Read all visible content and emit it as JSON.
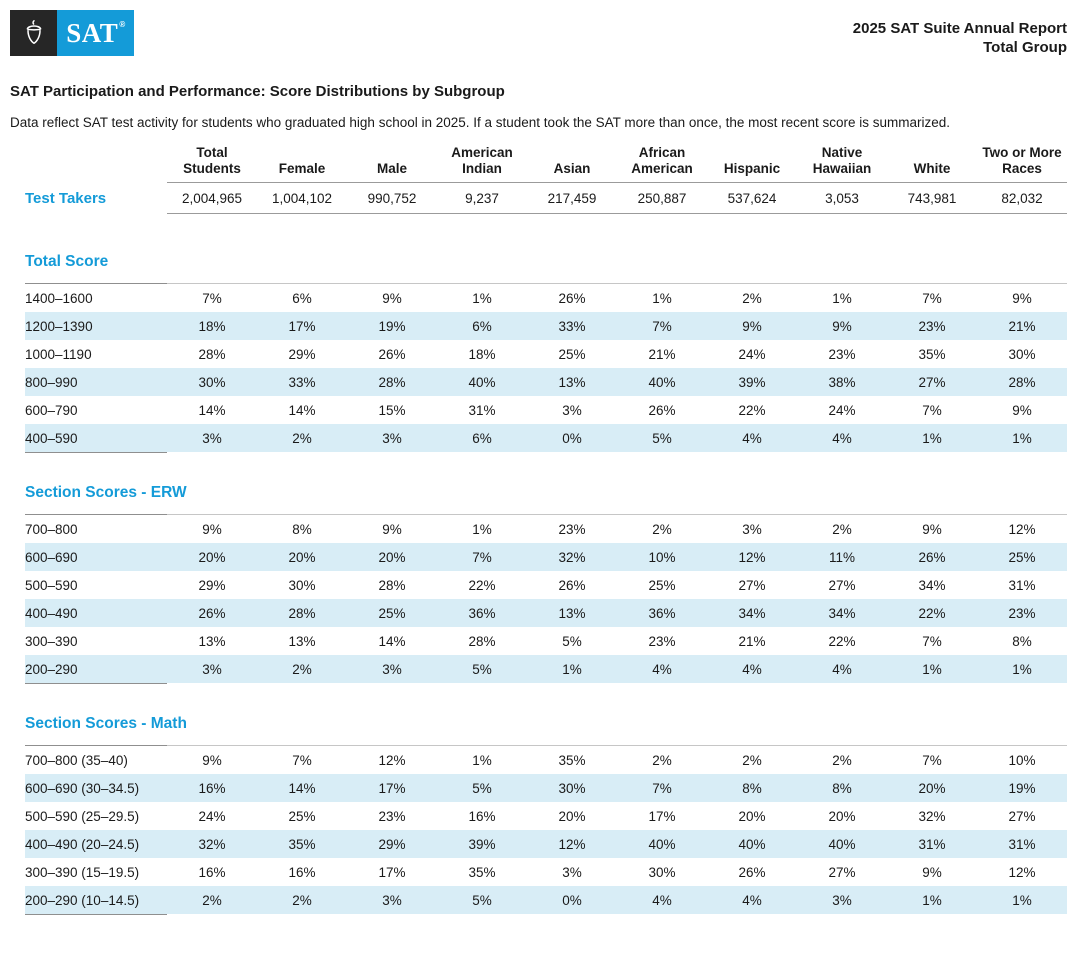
{
  "logo": {
    "text": "SAT",
    "mark": "®"
  },
  "header": {
    "line1": "2025 SAT Suite Annual Report",
    "line2": "Total Group"
  },
  "title": "SAT Participation and Performance: Score Distributions by Subgroup",
  "intro": "Data reflect SAT test activity for students who graduated high school in 2025. If a student took the SAT more than once, the most recent score is summarized.",
  "colors": {
    "accent_blue": "#149bd8",
    "stripe_blue": "#d8edf6",
    "logo_dark": "#262626"
  },
  "table": {
    "columns": [
      "Total Students",
      "Female",
      "Male",
      "American Indian",
      "Asian",
      "African American",
      "Hispanic",
      "Native Hawaiian",
      "White",
      "Two or More Races"
    ],
    "test_takers": {
      "label": "Test Takers",
      "values": [
        "2,004,965",
        "1,004,102",
        "990,752",
        "9,237",
        "217,459",
        "250,887",
        "537,624",
        "3,053",
        "743,981",
        "82,032"
      ]
    },
    "sections": [
      {
        "title": "Total Score",
        "rows": [
          {
            "label": "1400–1600",
            "values": [
              "7%",
              "6%",
              "9%",
              "1%",
              "26%",
              "1%",
              "2%",
              "1%",
              "7%",
              "9%"
            ]
          },
          {
            "label": "1200–1390",
            "values": [
              "18%",
              "17%",
              "19%",
              "6%",
              "33%",
              "7%",
              "9%",
              "9%",
              "23%",
              "21%"
            ]
          },
          {
            "label": "1000–1190",
            "values": [
              "28%",
              "29%",
              "26%",
              "18%",
              "25%",
              "21%",
              "24%",
              "23%",
              "35%",
              "30%"
            ]
          },
          {
            "label": "800–990",
            "values": [
              "30%",
              "33%",
              "28%",
              "40%",
              "13%",
              "40%",
              "39%",
              "38%",
              "27%",
              "28%"
            ]
          },
          {
            "label": "600–790",
            "values": [
              "14%",
              "14%",
              "15%",
              "31%",
              "3%",
              "26%",
              "22%",
              "24%",
              "7%",
              "9%"
            ]
          },
          {
            "label": "400–590",
            "values": [
              "3%",
              "2%",
              "3%",
              "6%",
              "0%",
              "5%",
              "4%",
              "4%",
              "1%",
              "1%"
            ]
          }
        ]
      },
      {
        "title": "Section Scores - ERW",
        "rows": [
          {
            "label": "700–800",
            "values": [
              "9%",
              "8%",
              "9%",
              "1%",
              "23%",
              "2%",
              "3%",
              "2%",
              "9%",
              "12%"
            ]
          },
          {
            "label": "600–690",
            "values": [
              "20%",
              "20%",
              "20%",
              "7%",
              "32%",
              "10%",
              "12%",
              "11%",
              "26%",
              "25%"
            ]
          },
          {
            "label": "500–590",
            "values": [
              "29%",
              "30%",
              "28%",
              "22%",
              "26%",
              "25%",
              "27%",
              "27%",
              "34%",
              "31%"
            ]
          },
          {
            "label": "400–490",
            "values": [
              "26%",
              "28%",
              "25%",
              "36%",
              "13%",
              "36%",
              "34%",
              "34%",
              "22%",
              "23%"
            ]
          },
          {
            "label": "300–390",
            "values": [
              "13%",
              "13%",
              "14%",
              "28%",
              "5%",
              "23%",
              "21%",
              "22%",
              "7%",
              "8%"
            ]
          },
          {
            "label": "200–290",
            "values": [
              "3%",
              "2%",
              "3%",
              "5%",
              "1%",
              "4%",
              "4%",
              "4%",
              "1%",
              "1%"
            ]
          }
        ]
      },
      {
        "title": "Section Scores - Math",
        "rows": [
          {
            "label": "700–800 (35–40)",
            "values": [
              "9%",
              "7%",
              "12%",
              "1%",
              "35%",
              "2%",
              "2%",
              "2%",
              "7%",
              "10%"
            ]
          },
          {
            "label": "600–690 (30–34.5)",
            "values": [
              "16%",
              "14%",
              "17%",
              "5%",
              "30%",
              "7%",
              "8%",
              "8%",
              "20%",
              "19%"
            ]
          },
          {
            "label": "500–590 (25–29.5)",
            "values": [
              "24%",
              "25%",
              "23%",
              "16%",
              "20%",
              "17%",
              "20%",
              "20%",
              "32%",
              "27%"
            ]
          },
          {
            "label": "400–490 (20–24.5)",
            "values": [
              "32%",
              "35%",
              "29%",
              "39%",
              "12%",
              "40%",
              "40%",
              "40%",
              "31%",
              "31%"
            ]
          },
          {
            "label": "300–390 (15–19.5)",
            "values": [
              "16%",
              "16%",
              "17%",
              "35%",
              "3%",
              "30%",
              "26%",
              "27%",
              "9%",
              "12%"
            ]
          },
          {
            "label": "200–290 (10–14.5)",
            "values": [
              "2%",
              "2%",
              "3%",
              "5%",
              "0%",
              "4%",
              "4%",
              "3%",
              "1%",
              "1%"
            ]
          }
        ]
      }
    ]
  }
}
